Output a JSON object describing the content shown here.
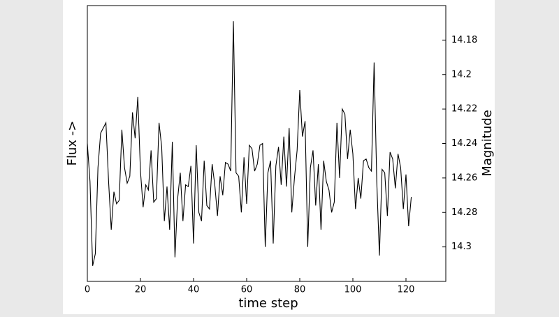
{
  "chart_data": {
    "type": "line",
    "xlabel": "time step",
    "ylabel_left": "Flux ->",
    "ylabel_right": "Magnitude",
    "color": "#000000",
    "yaxis_side": "right",
    "xlim": [
      0,
      135
    ],
    "xticks": [
      0,
      20,
      40,
      60,
      80,
      100,
      120
    ],
    "ylim": [
      14.32,
      14.16
    ],
    "yticks": [
      14.18,
      14.2,
      14.22,
      14.24,
      14.26,
      14.28,
      14.3
    ],
    "x": [
      0,
      1,
      2,
      3,
      4,
      5,
      6,
      7,
      8,
      9,
      10,
      11,
      12,
      13,
      14,
      15,
      16,
      17,
      18,
      19,
      20,
      21,
      22,
      23,
      24,
      25,
      26,
      27,
      28,
      29,
      30,
      31,
      32,
      33,
      34,
      35,
      36,
      37,
      38,
      39,
      40,
      41,
      42,
      43,
      44,
      45,
      46,
      47,
      48,
      49,
      50,
      51,
      52,
      53,
      54,
      55,
      56,
      57,
      58,
      59,
      60,
      61,
      62,
      63,
      64,
      65,
      66,
      67,
      68,
      69,
      70,
      71,
      72,
      73,
      74,
      75,
      76,
      77,
      78,
      79,
      80,
      81,
      82,
      83,
      84,
      85,
      86,
      87,
      88,
      89,
      90,
      91,
      92,
      93,
      94,
      95,
      96,
      97,
      98,
      99,
      100,
      101,
      102,
      103,
      104,
      105,
      106,
      107,
      108,
      109,
      110,
      111,
      112,
      113,
      114,
      115,
      116,
      117,
      118,
      119,
      120,
      121,
      122
    ],
    "values": [
      14.24,
      14.262,
      14.311,
      14.304,
      14.254,
      14.234,
      14.231,
      14.228,
      14.262,
      14.29,
      14.268,
      14.275,
      14.273,
      14.232,
      14.254,
      14.263,
      14.259,
      14.222,
      14.237,
      14.213,
      14.256,
      14.277,
      14.264,
      14.267,
      14.244,
      14.274,
      14.272,
      14.228,
      14.242,
      14.285,
      14.265,
      14.29,
      14.239,
      14.306,
      14.272,
      14.257,
      14.285,
      14.264,
      14.265,
      14.253,
      14.298,
      14.241,
      14.28,
      14.285,
      14.25,
      14.276,
      14.278,
      14.252,
      14.264,
      14.282,
      14.259,
      14.27,
      14.251,
      14.252,
      14.256,
      14.169,
      14.257,
      14.259,
      14.28,
      14.248,
      14.275,
      14.241,
      14.243,
      14.256,
      14.252,
      14.241,
      14.24,
      14.3,
      14.257,
      14.25,
      14.298,
      14.253,
      14.242,
      14.264,
      14.236,
      14.265,
      14.231,
      14.28,
      14.26,
      14.244,
      14.209,
      14.236,
      14.227,
      14.3,
      14.254,
      14.244,
      14.276,
      14.252,
      14.29,
      14.25,
      14.262,
      14.267,
      14.28,
      14.274,
      14.228,
      14.26,
      14.22,
      14.223,
      14.249,
      14.232,
      14.246,
      14.278,
      14.26,
      14.272,
      14.25,
      14.249,
      14.254,
      14.256,
      14.193,
      14.262,
      14.305,
      14.255,
      14.257,
      14.282,
      14.245,
      14.249,
      14.266,
      14.246,
      14.254,
      14.278,
      14.258,
      14.288,
      14.271
    ]
  }
}
